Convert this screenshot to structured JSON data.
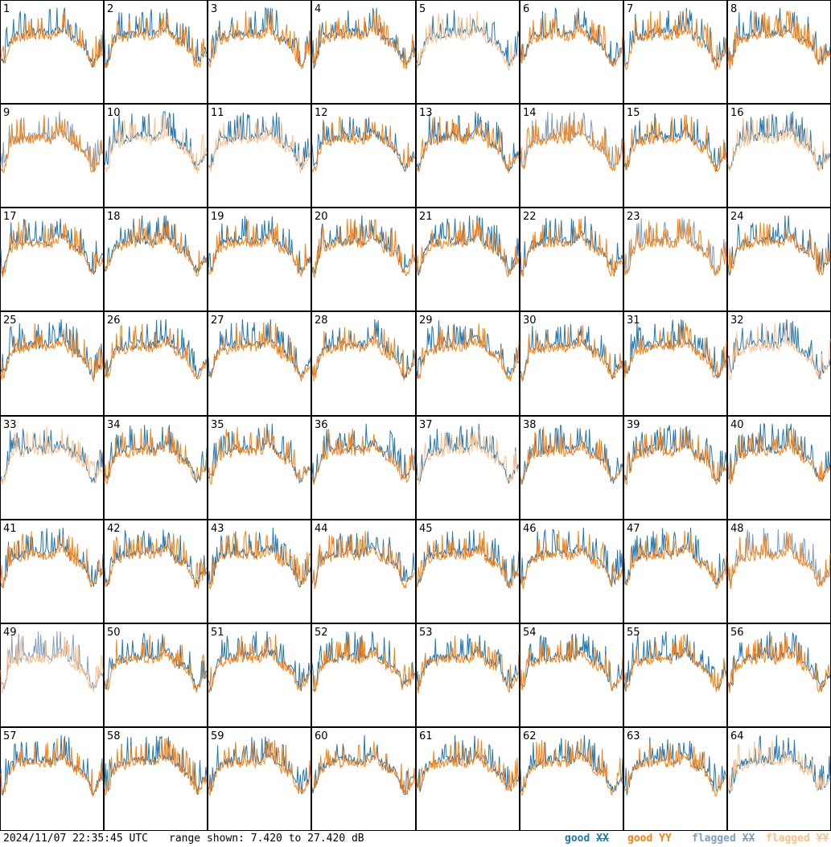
{
  "footer": {
    "timestamp": "2024/11/07 22:35:45 UTC",
    "range_text": "range shown: 7.420 to 27.420 dB"
  },
  "legend": [
    {
      "label": "good",
      "pol": "XX",
      "color": "#1f77b4"
    },
    {
      "label": "good",
      "pol": "YY",
      "color": "#ff7f0e"
    },
    {
      "label": "flagged",
      "pol": "XX",
      "color": "#7f9fbf"
    },
    {
      "label": "flagged",
      "pol": "YY",
      "color": "#ffbf87"
    }
  ],
  "chart_data": {
    "type": "line",
    "y_unit": "dB",
    "ylim": [
      7.42,
      27.42
    ],
    "grid_rows": 8,
    "grid_cols": 8,
    "panels": [
      {
        "id": 1,
        "xx": "good",
        "yy": "good"
      },
      {
        "id": 2,
        "xx": "good",
        "yy": "good"
      },
      {
        "id": 3,
        "xx": "good",
        "yy": "good"
      },
      {
        "id": 4,
        "xx": "good",
        "yy": "good"
      },
      {
        "id": 5,
        "xx": "good",
        "yy": "flagged"
      },
      {
        "id": 6,
        "xx": "good",
        "yy": "good"
      },
      {
        "id": 7,
        "xx": "good",
        "yy": "good"
      },
      {
        "id": 8,
        "xx": "good",
        "yy": "good"
      },
      {
        "id": 9,
        "xx": "flagged",
        "yy": "good"
      },
      {
        "id": 10,
        "xx": "good",
        "yy": "flagged"
      },
      {
        "id": 11,
        "xx": "good",
        "yy": "flagged"
      },
      {
        "id": 12,
        "xx": "good",
        "yy": "good"
      },
      {
        "id": 13,
        "xx": "good",
        "yy": "good"
      },
      {
        "id": 14,
        "xx": "flagged",
        "yy": "good"
      },
      {
        "id": 15,
        "xx": "good",
        "yy": "good"
      },
      {
        "id": 16,
        "xx": "good",
        "yy": "flagged"
      },
      {
        "id": 17,
        "xx": "good",
        "yy": "good"
      },
      {
        "id": 18,
        "xx": "good",
        "yy": "good"
      },
      {
        "id": 19,
        "xx": "good",
        "yy": "good"
      },
      {
        "id": 20,
        "xx": "good",
        "yy": "good"
      },
      {
        "id": 21,
        "xx": "good",
        "yy": "good"
      },
      {
        "id": 22,
        "xx": "good",
        "yy": "good"
      },
      {
        "id": 23,
        "xx": "flagged",
        "yy": "good"
      },
      {
        "id": 24,
        "xx": "good",
        "yy": "good"
      },
      {
        "id": 25,
        "xx": "good",
        "yy": "good"
      },
      {
        "id": 26,
        "xx": "good",
        "yy": "good"
      },
      {
        "id": 27,
        "xx": "good",
        "yy": "good"
      },
      {
        "id": 28,
        "xx": "good",
        "yy": "good"
      },
      {
        "id": 29,
        "xx": "good",
        "yy": "good"
      },
      {
        "id": 30,
        "xx": "good",
        "yy": "good"
      },
      {
        "id": 31,
        "xx": "good",
        "yy": "good"
      },
      {
        "id": 32,
        "xx": "good",
        "yy": "flagged"
      },
      {
        "id": 33,
        "xx": "good",
        "yy": "flagged"
      },
      {
        "id": 34,
        "xx": "good",
        "yy": "good"
      },
      {
        "id": 35,
        "xx": "good",
        "yy": "good"
      },
      {
        "id": 36,
        "xx": "good",
        "yy": "good"
      },
      {
        "id": 37,
        "xx": "good",
        "yy": "flagged"
      },
      {
        "id": 38,
        "xx": "good",
        "yy": "good"
      },
      {
        "id": 39,
        "xx": "good",
        "yy": "good"
      },
      {
        "id": 40,
        "xx": "good",
        "yy": "good"
      },
      {
        "id": 41,
        "xx": "good",
        "yy": "good"
      },
      {
        "id": 42,
        "xx": "good",
        "yy": "good"
      },
      {
        "id": 43,
        "xx": "good",
        "yy": "good"
      },
      {
        "id": 44,
        "xx": "good",
        "yy": "good"
      },
      {
        "id": 45,
        "xx": "good",
        "yy": "good"
      },
      {
        "id": 46,
        "xx": "good",
        "yy": "good"
      },
      {
        "id": 47,
        "xx": "good",
        "yy": "good"
      },
      {
        "id": 48,
        "xx": "flagged",
        "yy": "good"
      },
      {
        "id": 49,
        "xx": "flagged",
        "yy": "flagged"
      },
      {
        "id": 50,
        "xx": "good",
        "yy": "good"
      },
      {
        "id": 51,
        "xx": "good",
        "yy": "good"
      },
      {
        "id": 52,
        "xx": "good",
        "yy": "good"
      },
      {
        "id": 53,
        "xx": "good",
        "yy": "good"
      },
      {
        "id": 54,
        "xx": "good",
        "yy": "good"
      },
      {
        "id": 55,
        "xx": "good",
        "yy": "good"
      },
      {
        "id": 56,
        "xx": "good",
        "yy": "good"
      },
      {
        "id": 57,
        "xx": "good",
        "yy": "good"
      },
      {
        "id": 58,
        "xx": "good",
        "yy": "good"
      },
      {
        "id": 59,
        "xx": "good",
        "yy": "good"
      },
      {
        "id": 60,
        "xx": "good",
        "yy": "good"
      },
      {
        "id": 61,
        "xx": "good",
        "yy": "good"
      },
      {
        "id": 62,
        "xx": "good",
        "yy": "good"
      },
      {
        "id": 63,
        "xx": "good",
        "yy": "good"
      },
      {
        "id": 64,
        "xx": "good",
        "yy": "flagged"
      }
    ]
  }
}
